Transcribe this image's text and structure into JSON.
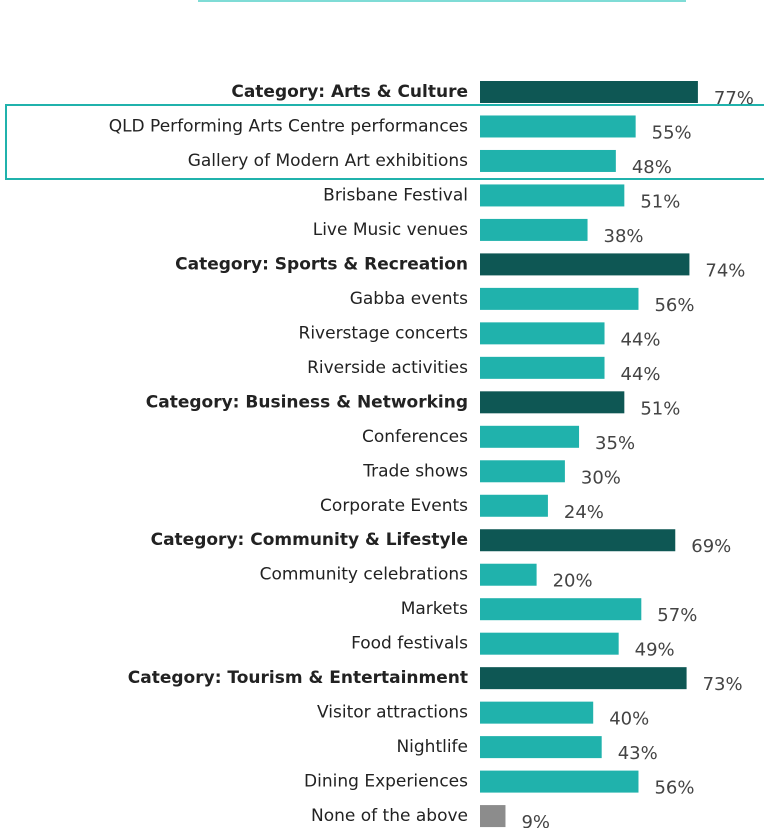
{
  "chart_data": {
    "type": "bar",
    "categories": [
      "Category: Arts & Culture",
      "QLD Performing Arts Centre performances",
      "Gallery of Modern Art exhibitions",
      "Brisbane Festival",
      "Live Music venues",
      "Category: Sports & Recreation",
      "Gabba events",
      "Riverstage concerts",
      "Riverside activities",
      "Category: Business & Networking",
      "Conferences",
      "Trade shows",
      "Corporate Events",
      "Category: Community & Lifestyle",
      "Community celebrations",
      "Markets",
      "Food festivals",
      "Category: Tourism & Entertainment",
      "Visitor attractions",
      "Nightlife",
      "Dining Experiences",
      "None of the above"
    ],
    "values": [
      77,
      55,
      48,
      51,
      38,
      74,
      56,
      44,
      44,
      51,
      35,
      30,
      24,
      69,
      20,
      57,
      49,
      73,
      40,
      43,
      56,
      9
    ],
    "value_labels": [
      "77%",
      "55%",
      "48%",
      "51%",
      "38%",
      "74%",
      "56%",
      "44%",
      "44%",
      "51%",
      "35%",
      "30%",
      "24%",
      "69%",
      "20%",
      "57%",
      "49%",
      "73%",
      "40%",
      "43%",
      "56%",
      "9%"
    ],
    "colors": [
      "#0e5754",
      "#20b2ac",
      "#20b2ac",
      "#20b2ac",
      "#20b2ac",
      "#0e5754",
      "#20b2ac",
      "#20b2ac",
      "#20b2ac",
      "#0e5754",
      "#20b2ac",
      "#20b2ac",
      "#20b2ac",
      "#0e5754",
      "#20b2ac",
      "#20b2ac",
      "#20b2ac",
      "#0e5754",
      "#20b2ac",
      "#20b2ac",
      "#20b2ac",
      "#8c8c8c"
    ]
  }
}
